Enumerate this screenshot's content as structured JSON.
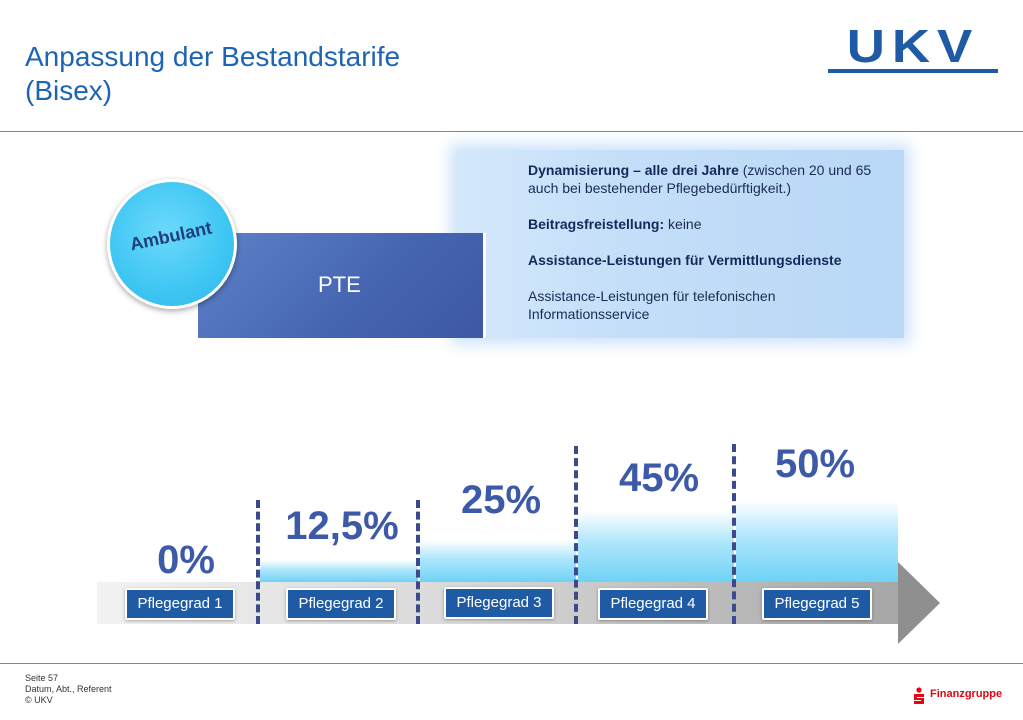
{
  "header": {
    "title_line1": "Anpassung der Bestandstarife",
    "title_line2": "(Bisex)",
    "logo_text": "UKV"
  },
  "product": {
    "badge": "Ambulant",
    "name": "PTE"
  },
  "info": {
    "item1_bold": "Dynamisierung – alle drei Jahre",
    "item1_rest": " (zwischen 20 und 65 auch bei bestehender Pflegebedürftigkeit.)",
    "item2_bold": "Beitragsfreistellung:",
    "item2_rest": " keine",
    "item3_bold": "Assistance-Leistungen für Vermittlungsdienste",
    "item4": "Assistance-Leistungen für telefonischen Informationsservice"
  },
  "levels": [
    {
      "grade": "Pflegegrad 1",
      "percent": "0%"
    },
    {
      "grade": "Pflegegrad 2",
      "percent": "12,5%"
    },
    {
      "grade": "Pflegegrad 3",
      "percent": "25%"
    },
    {
      "grade": "Pflegegrad 4",
      "percent": "45%"
    },
    {
      "grade": "Pflegegrad 5",
      "percent": "50%"
    }
  ],
  "footer": {
    "page": "Seite 57",
    "meta": "Datum, Abt., Referent",
    "copyright": "© UKV",
    "brand": "Finanzgruppe"
  },
  "colors": {
    "primary_blue": "#1f5ba5",
    "accent_cyan": "#3ec6f3",
    "brand_red": "#e30613"
  }
}
